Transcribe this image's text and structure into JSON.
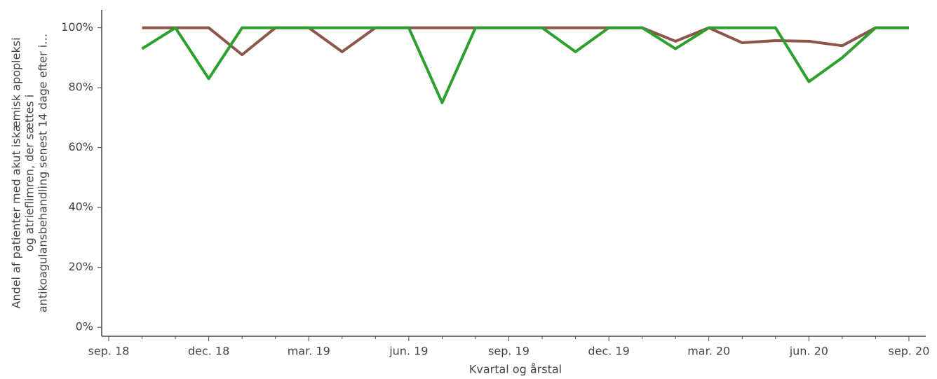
{
  "chart_data": {
    "type": "line",
    "x_label": "Kvartal og årstal",
    "y_label": [
      "Andel af patienter med akut iskæmisk apopleksi",
      "og atrieflimren, der sættes i",
      "antikoagulansbehandling senest 14 dage efter i…"
    ],
    "categories": [
      "sep. 18",
      null,
      null,
      "dec. 18",
      null,
      null,
      "mar. 19",
      null,
      null,
      "jun. 19",
      null,
      null,
      "sep. 19",
      null,
      null,
      "dec. 19",
      null,
      null,
      "mar. 20",
      null,
      null,
      "jun. 20",
      null,
      null,
      "sep. 20"
    ],
    "series": [
      {
        "color": "#8c564b",
        "values": [
          null,
          100,
          100,
          100,
          91,
          100,
          100,
          92,
          100,
          100,
          100,
          100,
          100,
          100,
          100,
          100,
          100,
          95.5,
          100,
          95,
          95.7,
          95.5,
          94,
          100,
          100
        ]
      },
      {
        "color": "#2ca02c",
        "values": [
          null,
          93,
          100,
          83,
          100,
          100,
          100,
          100,
          100,
          100,
          75,
          100,
          100,
          100,
          92,
          100,
          100,
          93,
          100,
          100,
          100,
          82,
          90,
          100,
          100
        ]
      }
    ],
    "ylim": [
      -3,
      106
    ],
    "yticks": [
      {
        "value": 0,
        "label": "0%"
      },
      {
        "value": 20,
        "label": "20%"
      },
      {
        "value": 40,
        "label": "40%"
      },
      {
        "value": 60,
        "label": "60%"
      },
      {
        "value": 80,
        "label": "80%"
      },
      {
        "value": 100,
        "label": "100%"
      }
    ]
  }
}
